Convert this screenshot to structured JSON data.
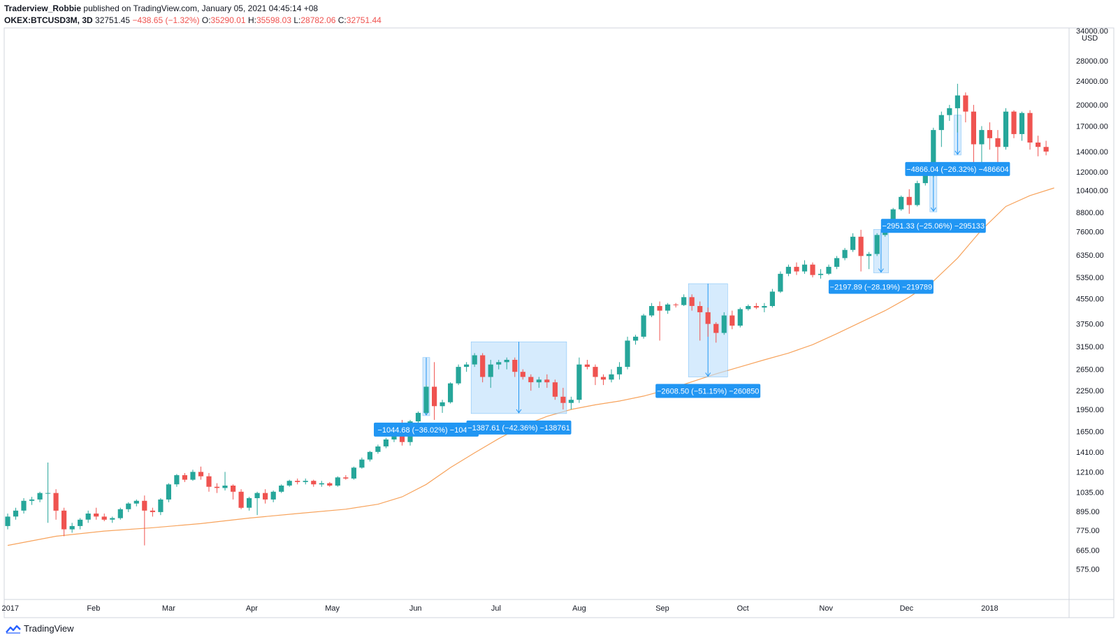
{
  "header": {
    "author": "Traderview_Robbie",
    "published": "published on TradingView.com, January 05, 2021 04:45:14 +08",
    "symbol": "OKEX:BTCUSD3M, 3D",
    "last": "32751.45",
    "change": "−438.65 (−1.32%)",
    "o_label": "O:",
    "o": "35290.01",
    "h_label": "H:",
    "h": "35598.03",
    "l_label": "L:",
    "l": "28782.06",
    "c_label": "C:",
    "c": "32751.44"
  },
  "brand": {
    "name": "TradingView",
    "icon": "tradingview-logo-icon"
  },
  "colors": {
    "up": "#26a69a",
    "down": "#ef5350",
    "ma": "#f7a35c",
    "measure_fill": "#bbdefb",
    "measure_label": "#2196f3",
    "border": "#d1d4dc"
  },
  "chart_data": {
    "type": "candlestick",
    "y_scale": "log",
    "currency": "USD",
    "price_axis_top_label": "34000.00",
    "price_ticks": [
      "28000.00",
      "24000.00",
      "20000.00",
      "17000.00",
      "14000.00",
      "12000.00",
      "10400.00",
      "8800.00",
      "7600.00",
      "6350.00",
      "5350.00",
      "4550.00",
      "3750.00",
      "3150.00",
      "2650.00",
      "2250.00",
      "1950.00",
      "1650.00",
      "1410.00",
      "1210.00",
      "1035.00",
      "895.00",
      "775.00",
      "665.00",
      "575.00"
    ],
    "time_ticks": [
      {
        "label": "2017",
        "date": "2017-01-01"
      },
      {
        "label": "Feb",
        "date": "2017-02-01"
      },
      {
        "label": "Mar",
        "date": "2017-03-01"
      },
      {
        "label": "Apr",
        "date": "2017-04-01"
      },
      {
        "label": "May",
        "date": "2017-05-01"
      },
      {
        "label": "Jun",
        "date": "2017-06-01"
      },
      {
        "label": "Jul",
        "date": "2017-07-01"
      },
      {
        "label": "Aug",
        "date": "2017-08-01"
      },
      {
        "label": "Sep",
        "date": "2017-09-01"
      },
      {
        "label": "Oct",
        "date": "2017-10-01"
      },
      {
        "label": "Nov",
        "date": "2017-11-01"
      },
      {
        "label": "Dec",
        "date": "2017-12-01"
      },
      {
        "label": "2018",
        "date": "2018-01-01"
      }
    ],
    "candles": [
      [
        800,
        880,
        780,
        860
      ],
      [
        860,
        920,
        840,
        900
      ],
      [
        900,
        990,
        880,
        970
      ],
      [
        970,
        1000,
        940,
        980
      ],
      [
        980,
        1040,
        960,
        1030
      ],
      [
        1030,
        1300,
        820,
        1030
      ],
      [
        1030,
        1060,
        840,
        900
      ],
      [
        900,
        920,
        740,
        780
      ],
      [
        780,
        820,
        760,
        800
      ],
      [
        800,
        850,
        780,
        840
      ],
      [
        840,
        900,
        820,
        880
      ],
      [
        880,
        920,
        840,
        860
      ],
      [
        860,
        880,
        830,
        840
      ],
      [
        840,
        860,
        820,
        850
      ],
      [
        850,
        920,
        840,
        910
      ],
      [
        910,
        960,
        890,
        950
      ],
      [
        950,
        980,
        930,
        970
      ],
      [
        970,
        1010,
        690,
        900
      ],
      [
        900,
        920,
        860,
        890
      ],
      [
        890,
        990,
        870,
        980
      ],
      [
        980,
        1110,
        960,
        1100
      ],
      [
        1100,
        1190,
        1080,
        1180
      ],
      [
        1180,
        1200,
        1120,
        1140
      ],
      [
        1140,
        1230,
        1130,
        1210
      ],
      [
        1210,
        1260,
        1140,
        1170
      ],
      [
        1170,
        1200,
        1040,
        1080
      ],
      [
        1080,
        1110,
        1030,
        1070
      ],
      [
        1070,
        1210,
        1050,
        1090
      ],
      [
        1090,
        1100,
        980,
        1040
      ],
      [
        1040,
        1060,
        910,
        920
      ],
      [
        920,
        1000,
        900,
        990
      ],
      [
        990,
        1040,
        870,
        1030
      ],
      [
        1030,
        1060,
        950,
        980
      ],
      [
        980,
        1050,
        960,
        1040
      ],
      [
        1040,
        1100,
        1030,
        1090
      ],
      [
        1090,
        1140,
        1080,
        1130
      ],
      [
        1130,
        1150,
        1100,
        1120
      ],
      [
        1120,
        1150,
        1100,
        1130
      ],
      [
        1130,
        1140,
        1080,
        1100
      ],
      [
        1100,
        1130,
        1080,
        1110
      ],
      [
        1110,
        1120,
        1080,
        1090
      ],
      [
        1090,
        1170,
        1080,
        1160
      ],
      [
        1160,
        1180,
        1140,
        1150
      ],
      [
        1150,
        1260,
        1140,
        1250
      ],
      [
        1250,
        1350,
        1240,
        1330
      ],
      [
        1330,
        1420,
        1310,
        1410
      ],
      [
        1410,
        1490,
        1390,
        1470
      ],
      [
        1470,
        1570,
        1450,
        1550
      ],
      [
        1550,
        1620,
        1520,
        1600
      ],
      [
        1600,
        1800,
        1480,
        1520
      ],
      [
        1520,
        1800,
        1480,
        1780
      ],
      [
        1780,
        1920,
        1760,
        1900
      ],
      [
        1900,
        2350,
        1880,
        2320
      ],
      [
        2320,
        2800,
        1800,
        2000
      ],
      [
        2000,
        2100,
        1900,
        2060
      ],
      [
        2060,
        2400,
        2040,
        2380
      ],
      [
        2380,
        2750,
        2350,
        2700
      ],
      [
        2700,
        2800,
        2600,
        2750
      ],
      [
        2750,
        3000,
        2700,
        2950
      ],
      [
        2950,
        3000,
        2400,
        2500
      ],
      [
        2500,
        2850,
        2300,
        2750
      ],
      [
        2750,
        2850,
        2650,
        2800
      ],
      [
        2800,
        2900,
        2650,
        2850
      ],
      [
        2850,
        2900,
        2500,
        2600
      ],
      [
        2600,
        2650,
        2450,
        2500
      ],
      [
        2500,
        2550,
        2250,
        2400
      ],
      [
        2400,
        2500,
        2300,
        2450
      ],
      [
        2450,
        2550,
        2300,
        2400
      ],
      [
        2400,
        2450,
        2100,
        2150
      ],
      [
        2150,
        2300,
        1950,
        2050
      ],
      [
        2050,
        2150,
        1950,
        2100
      ],
      [
        2100,
        2900,
        2050,
        2750
      ],
      [
        2750,
        2850,
        2650,
        2700
      ],
      [
        2700,
        2750,
        2350,
        2500
      ],
      [
        2500,
        2550,
        2350,
        2450
      ],
      [
        2450,
        2650,
        2400,
        2550
      ],
      [
        2550,
        2800,
        2450,
        2700
      ],
      [
        2700,
        3400,
        2650,
        3300
      ],
      [
        3300,
        3450,
        3200,
        3400
      ],
      [
        3400,
        4050,
        3350,
        4000
      ],
      [
        4000,
        4400,
        3950,
        4300
      ],
      [
        4300,
        4450,
        3300,
        4150
      ],
      [
        4150,
        4400,
        4050,
        4350
      ],
      [
        4350,
        4400,
        4250,
        4330
      ],
      [
        4330,
        4700,
        4300,
        4600
      ],
      [
        4600,
        4700,
        4150,
        4300
      ],
      [
        4300,
        4450,
        3300,
        4100
      ],
      [
        4100,
        4250,
        3400,
        3750
      ],
      [
        3750,
        3800,
        3250,
        3500
      ],
      [
        3500,
        4100,
        3450,
        4000
      ],
      [
        4000,
        4150,
        3600,
        3700
      ],
      [
        3700,
        4250,
        3650,
        4200
      ],
      [
        4200,
        4350,
        4150,
        4300
      ],
      [
        4300,
        4400,
        4200,
        4250
      ],
      [
        4250,
        4400,
        4100,
        4300
      ],
      [
        4300,
        4900,
        4250,
        4800
      ],
      [
        4800,
        5600,
        4750,
        5500
      ],
      [
        5500,
        5900,
        5400,
        5800
      ],
      [
        5800,
        6000,
        5450,
        5600
      ],
      [
        5600,
        6100,
        5500,
        5900
      ],
      [
        5900,
        6000,
        5350,
        5450
      ],
      [
        5450,
        5700,
        5300,
        5500
      ],
      [
        5500,
        5900,
        5450,
        5800
      ],
      [
        5800,
        6300,
        5700,
        6200
      ],
      [
        6200,
        6700,
        6100,
        6600
      ],
      [
        6600,
        7500,
        6500,
        7300
      ],
      [
        7300,
        7700,
        5600,
        6300
      ],
      [
        6300,
        6500,
        5700,
        6400
      ],
      [
        6400,
        7500,
        6300,
        7400
      ],
      [
        7400,
        8300,
        7300,
        8200
      ],
      [
        8200,
        9100,
        8000,
        9000
      ],
      [
        9000,
        10000,
        8900,
        9900
      ],
      [
        9900,
        10500,
        8700,
        9300
      ],
      [
        9300,
        11200,
        9200,
        11000
      ],
      [
        11000,
        11800,
        10800,
        11700
      ],
      [
        11700,
        16800,
        11500,
        16500
      ],
      [
        16500,
        19000,
        14500,
        18500
      ],
      [
        18500,
        20000,
        17700,
        19500
      ],
      [
        19500,
        23500,
        16200,
        21500
      ],
      [
        21500,
        22000,
        17500,
        19000
      ],
      [
        19000,
        20000,
        12000,
        14800
      ],
      [
        14800,
        17000,
        12800,
        16500
      ],
      [
        16500,
        17500,
        14200,
        15500
      ],
      [
        15500,
        16500,
        12500,
        14500
      ],
      [
        14500,
        19500,
        14200,
        19000
      ],
      [
        19000,
        19200,
        15500,
        16000
      ],
      [
        16000,
        19000,
        15200,
        18800
      ],
      [
        18800,
        19200,
        14200,
        15000
      ],
      [
        15000,
        15800,
        13500,
        14500
      ],
      [
        14500,
        15200,
        13600,
        14000
      ]
    ],
    "ma": [
      [
        0,
        690
      ],
      [
        6,
        740
      ],
      [
        12,
        770
      ],
      [
        18,
        790
      ],
      [
        24,
        815
      ],
      [
        30,
        850
      ],
      [
        36,
        880
      ],
      [
        42,
        910
      ],
      [
        46,
        945
      ],
      [
        49,
        1000
      ],
      [
        52,
        1100
      ],
      [
        55,
        1250
      ],
      [
        58,
        1400
      ],
      [
        61,
        1560
      ],
      [
        64,
        1720
      ],
      [
        67,
        1850
      ],
      [
        70,
        1950
      ],
      [
        73,
        2020
      ],
      [
        76,
        2080
      ],
      [
        79,
        2160
      ],
      [
        82,
        2270
      ],
      [
        85,
        2410
      ],
      [
        88,
        2560
      ],
      [
        91,
        2700
      ],
      [
        94,
        2850
      ],
      [
        97,
        3000
      ],
      [
        100,
        3200
      ],
      [
        103,
        3480
      ],
      [
        106,
        3800
      ],
      [
        109,
        4150
      ],
      [
        112,
        4600
      ],
      [
        115,
        5200
      ],
      [
        118,
        6200
      ],
      [
        121,
        7700
      ],
      [
        124,
        9200
      ],
      [
        127,
        10000
      ],
      [
        130,
        10600
      ]
    ],
    "measures": [
      {
        "label": "−1044.68 (−36.02%) −104…",
        "start": {
          "i": 52,
          "price": 2900
        },
        "end": {
          "i": 52,
          "price": 1860
        }
      },
      {
        "label": "−1387.61 (−42.36%) −138761",
        "start": {
          "i": 58,
          "price": 3270
        },
        "end": {
          "i": 69,
          "price": 1890
        }
      },
      {
        "label": "−2608.50 (−51.15%) −260850",
        "start": {
          "i": 85,
          "price": 5100
        },
        "end": {
          "i": 89,
          "price": 2500
        }
      },
      {
        "label": "−2197.89 (−28.19%) −219789",
        "start": {
          "i": 108,
          "price": 7720
        },
        "end": {
          "i": 109,
          "price": 5540
        }
      },
      {
        "label": "−2951.33 (−25.06%) −295133",
        "start": {
          "i": 115,
          "price": 11780
        },
        "end": {
          "i": 115,
          "price": 8830
        }
      },
      {
        "label": "−4866.04 (−26.32%) −486604",
        "start": {
          "i": 118,
          "price": 18490
        },
        "end": {
          "i": 118,
          "price": 13630
        }
      }
    ]
  }
}
